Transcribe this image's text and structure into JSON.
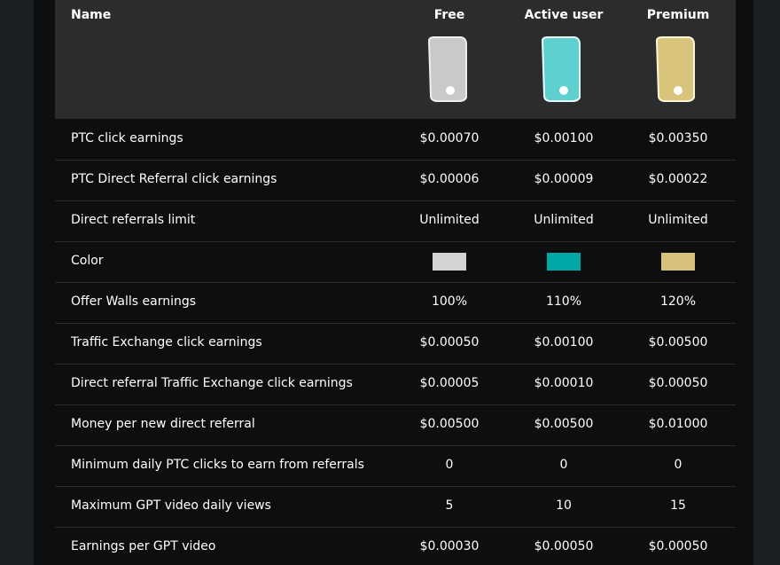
{
  "table": {
    "header": [
      "Name",
      "Free",
      "Active user",
      "Premium"
    ],
    "rows": [
      {
        "label": "PTC click earnings",
        "values": [
          "$0.00070",
          "$0.00100",
          "$0.00350"
        ]
      },
      {
        "label": "PTC Direct Referral click earnings",
        "values": [
          "$0.00006",
          "$0.00009",
          "$0.00022"
        ]
      },
      {
        "label": "Direct referrals limit",
        "values": [
          "Unlimited",
          "Unlimited",
          "Unlimited"
        ]
      },
      {
        "label": "Color"
      },
      {
        "label": "Offer Walls earnings",
        "values": [
          "100%",
          "110%",
          "120%"
        ]
      },
      {
        "label": "Traffic Exchange click earnings",
        "values": [
          "$0.00050",
          "$0.00100",
          "$0.00500"
        ]
      },
      {
        "label": "Direct referral Traffic Exchange click earnings",
        "values": [
          "$0.00005",
          "$0.00010",
          "$0.00050"
        ]
      },
      {
        "label": "Money per new direct referral",
        "values": [
          "$0.00500",
          "$0.00500",
          "$0.01000"
        ]
      },
      {
        "label": "Minimum daily PTC clicks to earn from referrals",
        "values": [
          "0",
          "0",
          "0"
        ]
      },
      {
        "label": "Maximum GPT video daily views",
        "values": [
          "5",
          "10",
          "15"
        ]
      },
      {
        "label": "Earnings per GPT video",
        "values": [
          "$0.00030",
          "$0.00050",
          "$0.00050"
        ]
      }
    ]
  }
}
